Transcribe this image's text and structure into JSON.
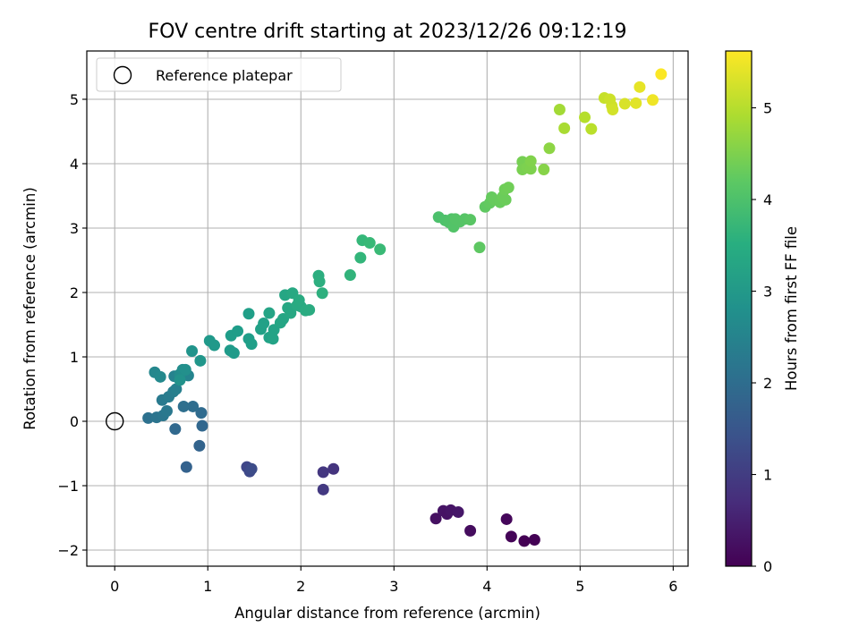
{
  "chart_data": {
    "type": "scatter",
    "title": "FOV centre drift starting at 2023/12/26 09:12:19",
    "xlabel": "Angular distance from reference (arcmin)",
    "ylabel": "Rotation from reference (arcmin)",
    "colorbar_label": "Hours from first FF file",
    "colormap": "viridis",
    "xlim": [
      -0.3,
      6.16
    ],
    "ylim": [
      -2.25,
      5.75
    ],
    "xticks": [
      0,
      1,
      2,
      3,
      4,
      5,
      6
    ],
    "xtick_labels": [
      "0",
      "1",
      "2",
      "3",
      "4",
      "5",
      "6"
    ],
    "yticks": [
      -2,
      -1,
      0,
      1,
      2,
      3,
      4,
      5
    ],
    "ytick_labels": [
      "−2",
      "−1",
      "0",
      "1",
      "2",
      "3",
      "4",
      "5"
    ],
    "clim": [
      0,
      5.62
    ],
    "cticks": [
      0,
      1,
      2,
      3,
      4,
      5
    ],
    "ctick_labels": [
      "0",
      "1",
      "2",
      "3",
      "4",
      "5"
    ],
    "grid": true,
    "legend": {
      "placement": "top-left",
      "entries": [
        "Reference platepar"
      ]
    },
    "reference_point": {
      "x": 0,
      "y": 0
    },
    "series": [
      {
        "points": [
          {
            "x": 4.21,
            "y": -1.52,
            "c": 0.1
          },
          {
            "x": 4.26,
            "y": -1.79,
            "c": 0.05
          },
          {
            "x": 4.4,
            "y": -1.86,
            "c": 0.0
          },
          {
            "x": 4.51,
            "y": -1.84,
            "c": 0.02
          },
          {
            "x": 3.82,
            "y": -1.7,
            "c": 0.18
          },
          {
            "x": 3.45,
            "y": -1.51,
            "c": 0.25
          },
          {
            "x": 3.53,
            "y": -1.39,
            "c": 0.3
          },
          {
            "x": 3.57,
            "y": -1.44,
            "c": 0.28
          },
          {
            "x": 3.61,
            "y": -1.38,
            "c": 0.32
          },
          {
            "x": 3.69,
            "y": -1.41,
            "c": 0.35
          },
          {
            "x": 2.35,
            "y": -0.74,
            "c": 0.85
          },
          {
            "x": 2.24,
            "y": -0.79,
            "c": 0.9
          },
          {
            "x": 2.24,
            "y": -1.06,
            "c": 0.95
          },
          {
            "x": 1.42,
            "y": -0.71,
            "c": 1.2
          },
          {
            "x": 1.45,
            "y": -0.78,
            "c": 1.25
          },
          {
            "x": 1.47,
            "y": -0.74,
            "c": 1.3
          },
          {
            "x": 0.77,
            "y": -0.71,
            "c": 1.75
          },
          {
            "x": 0.91,
            "y": -0.38,
            "c": 1.8
          },
          {
            "x": 0.94,
            "y": -0.07,
            "c": 1.85
          },
          {
            "x": 0.65,
            "y": -0.12,
            "c": 1.9
          },
          {
            "x": 0.93,
            "y": 0.13,
            "c": 1.95
          },
          {
            "x": 0.84,
            "y": 0.23,
            "c": 2.0
          },
          {
            "x": 0.74,
            "y": 0.23,
            "c": 2.05
          },
          {
            "x": 0.36,
            "y": 0.05,
            "c": 2.1
          },
          {
            "x": 0.45,
            "y": 0.06,
            "c": 2.15
          },
          {
            "x": 0.52,
            "y": 0.09,
            "c": 2.2
          },
          {
            "x": 0.56,
            "y": 0.16,
            "c": 2.25
          },
          {
            "x": 0.51,
            "y": 0.33,
            "c": 2.3
          },
          {
            "x": 0.58,
            "y": 0.38,
            "c": 2.35
          },
          {
            "x": 0.63,
            "y": 0.46,
            "c": 2.4
          },
          {
            "x": 0.66,
            "y": 0.5,
            "c": 2.45
          },
          {
            "x": 0.64,
            "y": 0.7,
            "c": 2.5
          },
          {
            "x": 0.79,
            "y": 0.71,
            "c": 2.55
          },
          {
            "x": 0.43,
            "y": 0.76,
            "c": 2.6
          },
          {
            "x": 0.49,
            "y": 0.69,
            "c": 2.65
          },
          {
            "x": 0.7,
            "y": 0.73,
            "c": 2.7
          },
          {
            "x": 0.73,
            "y": 0.8,
            "c": 2.75
          },
          {
            "x": 0.76,
            "y": 0.8,
            "c": 2.8
          },
          {
            "x": 0.7,
            "y": 0.64,
            "c": 2.85
          },
          {
            "x": 0.83,
            "y": 1.09,
            "c": 2.9
          },
          {
            "x": 0.92,
            "y": 0.94,
            "c": 2.95
          },
          {
            "x": 1.02,
            "y": 1.25,
            "c": 3.0
          },
          {
            "x": 1.07,
            "y": 1.18,
            "c": 3.0
          },
          {
            "x": 1.24,
            "y": 1.1,
            "c": 3.05
          },
          {
            "x": 1.28,
            "y": 1.06,
            "c": 3.05
          },
          {
            "x": 1.25,
            "y": 1.33,
            "c": 3.1
          },
          {
            "x": 1.32,
            "y": 1.4,
            "c": 3.1
          },
          {
            "x": 1.44,
            "y": 1.28,
            "c": 3.12
          },
          {
            "x": 1.47,
            "y": 1.2,
            "c": 3.15
          },
          {
            "x": 1.44,
            "y": 1.67,
            "c": 3.15
          },
          {
            "x": 1.57,
            "y": 1.43,
            "c": 3.2
          },
          {
            "x": 1.6,
            "y": 1.52,
            "c": 3.2
          },
          {
            "x": 1.66,
            "y": 1.3,
            "c": 3.22
          },
          {
            "x": 1.7,
            "y": 1.28,
            "c": 3.25
          },
          {
            "x": 1.71,
            "y": 1.42,
            "c": 3.25
          },
          {
            "x": 1.66,
            "y": 1.68,
            "c": 3.28
          },
          {
            "x": 1.78,
            "y": 1.53,
            "c": 3.3
          },
          {
            "x": 1.81,
            "y": 1.59,
            "c": 3.3
          },
          {
            "x": 1.83,
            "y": 1.96,
            "c": 3.32
          },
          {
            "x": 1.89,
            "y": 1.68,
            "c": 3.35
          },
          {
            "x": 1.86,
            "y": 1.76,
            "c": 3.35
          },
          {
            "x": 1.91,
            "y": 1.99,
            "c": 3.38
          },
          {
            "x": 1.96,
            "y": 1.8,
            "c": 3.4
          },
          {
            "x": 2.0,
            "y": 1.78,
            "c": 3.4
          },
          {
            "x": 1.98,
            "y": 1.88,
            "c": 3.42
          },
          {
            "x": 2.05,
            "y": 1.72,
            "c": 3.45
          },
          {
            "x": 2.09,
            "y": 1.73,
            "c": 3.45
          },
          {
            "x": 2.19,
            "y": 2.26,
            "c": 3.5
          },
          {
            "x": 2.2,
            "y": 2.17,
            "c": 3.52
          },
          {
            "x": 2.23,
            "y": 1.99,
            "c": 3.55
          },
          {
            "x": 2.53,
            "y": 2.27,
            "c": 3.65
          },
          {
            "x": 2.64,
            "y": 2.54,
            "c": 3.7
          },
          {
            "x": 2.66,
            "y": 2.81,
            "c": 3.75
          },
          {
            "x": 2.74,
            "y": 2.77,
            "c": 3.78
          },
          {
            "x": 2.85,
            "y": 2.67,
            "c": 3.8
          },
          {
            "x": 3.48,
            "y": 3.17,
            "c": 4.0
          },
          {
            "x": 3.55,
            "y": 3.12,
            "c": 4.02
          },
          {
            "x": 3.59,
            "y": 3.09,
            "c": 4.05
          },
          {
            "x": 3.62,
            "y": 3.14,
            "c": 4.05
          },
          {
            "x": 3.64,
            "y": 3.02,
            "c": 4.08
          },
          {
            "x": 3.66,
            "y": 3.14,
            "c": 4.1
          },
          {
            "x": 3.71,
            "y": 3.1,
            "c": 4.1
          },
          {
            "x": 3.76,
            "y": 3.14,
            "c": 4.12
          },
          {
            "x": 3.82,
            "y": 3.13,
            "c": 4.15
          },
          {
            "x": 3.92,
            "y": 2.7,
            "c": 4.2
          },
          {
            "x": 3.98,
            "y": 3.33,
            "c": 4.22
          },
          {
            "x": 4.03,
            "y": 3.39,
            "c": 4.25
          },
          {
            "x": 4.05,
            "y": 3.48,
            "c": 4.28
          },
          {
            "x": 4.08,
            "y": 3.44,
            "c": 4.3
          },
          {
            "x": 4.14,
            "y": 3.4,
            "c": 4.32
          },
          {
            "x": 4.17,
            "y": 3.49,
            "c": 4.35
          },
          {
            "x": 4.2,
            "y": 3.44,
            "c": 4.35
          },
          {
            "x": 4.19,
            "y": 3.6,
            "c": 4.38
          },
          {
            "x": 4.23,
            "y": 3.63,
            "c": 4.4
          },
          {
            "x": 4.38,
            "y": 4.03,
            "c": 4.45
          },
          {
            "x": 4.38,
            "y": 3.91,
            "c": 4.48
          },
          {
            "x": 4.43,
            "y": 3.94,
            "c": 4.5
          },
          {
            "x": 4.47,
            "y": 3.92,
            "c": 4.52
          },
          {
            "x": 4.47,
            "y": 4.04,
            "c": 4.55
          },
          {
            "x": 4.61,
            "y": 3.91,
            "c": 4.6
          },
          {
            "x": 4.67,
            "y": 4.24,
            "c": 4.65
          },
          {
            "x": 4.78,
            "y": 4.84,
            "c": 4.85
          },
          {
            "x": 4.83,
            "y": 4.55,
            "c": 4.9
          },
          {
            "x": 5.05,
            "y": 4.72,
            "c": 5.0
          },
          {
            "x": 5.12,
            "y": 4.54,
            "c": 5.05
          },
          {
            "x": 5.26,
            "y": 5.02,
            "c": 5.15
          },
          {
            "x": 5.32,
            "y": 5.0,
            "c": 5.2
          },
          {
            "x": 5.34,
            "y": 4.9,
            "c": 5.22
          },
          {
            "x": 5.35,
            "y": 4.84,
            "c": 5.25
          },
          {
            "x": 5.48,
            "y": 4.93,
            "c": 5.3
          },
          {
            "x": 5.6,
            "y": 4.94,
            "c": 5.38
          },
          {
            "x": 5.64,
            "y": 5.19,
            "c": 5.42
          },
          {
            "x": 5.78,
            "y": 4.99,
            "c": 5.5
          },
          {
            "x": 5.87,
            "y": 5.39,
            "c": 5.6
          }
        ]
      }
    ]
  }
}
